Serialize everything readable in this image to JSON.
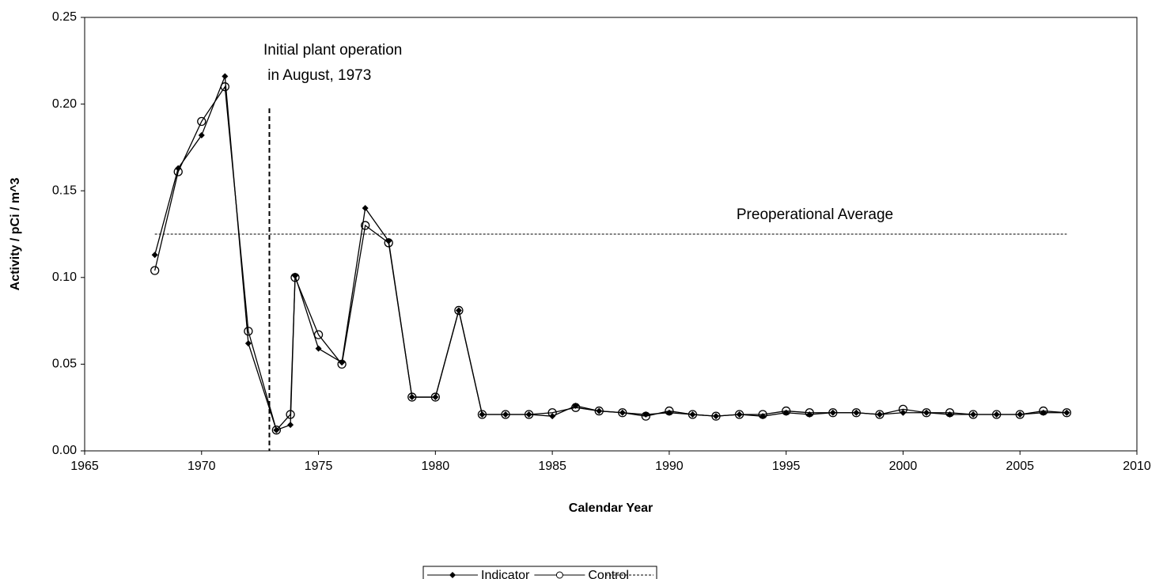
{
  "chart_data": {
    "type": "line",
    "xlabel": "Calendar Year",
    "ylabel": "Activity  /  pCi / m^3",
    "xlim": [
      1965,
      2010
    ],
    "xticks": [
      1965,
      1970,
      1975,
      1980,
      1985,
      1990,
      1995,
      2000,
      2005,
      2010
    ],
    "ylim": [
      0,
      0.25
    ],
    "yticks": [
      {
        "value": 0,
        "label": "0.00"
      },
      {
        "value": 0.05,
        "label": "0.05"
      },
      {
        "value": 0.1,
        "label": "0.10"
      },
      {
        "value": 0.15,
        "label": "0.15"
      },
      {
        "value": 0.2,
        "label": "0.20"
      },
      {
        "value": 0.25,
        "label": "0.25"
      }
    ],
    "series": [
      {
        "name": "Indicator",
        "color": "#000000",
        "marker": "diamond",
        "x": [
          1968,
          1969,
          1970,
          1971,
          1972,
          1973.2,
          1973.8,
          1974,
          1975,
          1976,
          1977,
          1978,
          1979,
          1980,
          1981,
          1982,
          1983,
          1984,
          1985,
          1986,
          1987,
          1988,
          1989,
          1990,
          1991,
          1992,
          1993,
          1994,
          1995,
          1996,
          1997,
          1998,
          1999,
          2000,
          2001,
          2002,
          2003,
          2004,
          2005,
          2006,
          2007
        ],
        "values": [
          0.113,
          0.163,
          0.182,
          0.216,
          0.062,
          0.012,
          0.015,
          0.101,
          0.059,
          0.051,
          0.14,
          0.121,
          0.031,
          0.031,
          0.081,
          0.021,
          0.021,
          0.021,
          0.02,
          0.026,
          0.023,
          0.022,
          0.021,
          0.022,
          0.021,
          0.02,
          0.021,
          0.02,
          0.022,
          0.021,
          0.022,
          0.022,
          0.021,
          0.022,
          0.022,
          0.021,
          0.021,
          0.021,
          0.021,
          0.022,
          0.022
        ]
      },
      {
        "name": "Control",
        "color": "#000000",
        "marker": "circle",
        "x": [
          1968,
          1969,
          1970,
          1971,
          1972,
          1973.2,
          1973.8,
          1974,
          1975,
          1976,
          1977,
          1978,
          1979,
          1980,
          1981,
          1982,
          1983,
          1984,
          1985,
          1986,
          1987,
          1988,
          1989,
          1990,
          1991,
          1992,
          1993,
          1994,
          1995,
          1996,
          1997,
          1998,
          1999,
          2000,
          2001,
          2002,
          2003,
          2004,
          2005,
          2006,
          2007
        ],
        "values": [
          0.104,
          0.161,
          0.19,
          0.21,
          0.069,
          0.012,
          0.021,
          0.1,
          0.067,
          0.05,
          0.13,
          0.12,
          0.031,
          0.031,
          0.081,
          0.021,
          0.021,
          0.021,
          0.022,
          0.025,
          0.023,
          0.022,
          0.02,
          0.023,
          0.021,
          0.02,
          0.021,
          0.021,
          0.023,
          0.022,
          0.022,
          0.022,
          0.021,
          0.024,
          0.022,
          0.022,
          0.021,
          0.021,
          0.021,
          0.023,
          0.022
        ]
      }
    ],
    "reference_line": {
      "value": 0.125,
      "x": [
        1968,
        2007
      ],
      "label": "Preoperational Average"
    },
    "vline": {
      "x": 1972.9,
      "label": [
        "Initial plant operation",
        " in August, 1973"
      ]
    }
  }
}
